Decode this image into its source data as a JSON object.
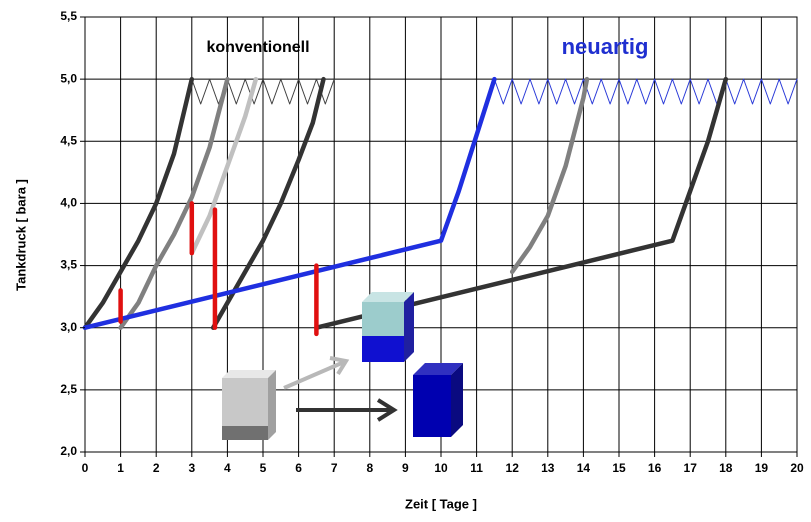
{
  "chart_data": {
    "type": "line",
    "xlabel": "Zeit  [ Tage ]",
    "ylabel": "Tankdruck  [ bara ]",
    "annotations": [
      {
        "text": "konventionell",
        "color": "#000000"
      },
      {
        "text": "neuartig",
        "color": "#1f2fd0"
      }
    ],
    "xlim": [
      0,
      20
    ],
    "xticks": [
      0,
      1,
      2,
      3,
      4,
      5,
      6,
      7,
      8,
      9,
      10,
      11,
      12,
      13,
      14,
      15,
      16,
      17,
      18,
      19,
      20
    ],
    "ylim": [
      2.0,
      5.5
    ],
    "yticks": [
      {
        "value": 2.0,
        "label": "2,0"
      },
      {
        "value": 2.5,
        "label": "2,5"
      },
      {
        "value": 3.0,
        "label": "3,0"
      },
      {
        "value": 3.5,
        "label": "3,5"
      },
      {
        "value": 4.0,
        "label": "4,0"
      },
      {
        "value": 4.5,
        "label": "4,5"
      },
      {
        "value": 5.0,
        "label": "5,0"
      },
      {
        "value": 5.5,
        "label": "5,5"
      }
    ],
    "grid": true,
    "series": [
      {
        "color": "#404040",
        "x": [
          3,
          3.25,
          3.5,
          3.75,
          4,
          4.25,
          4.5,
          4.75,
          5,
          5.25,
          5.5,
          5.75,
          6,
          6.25,
          6.5,
          6.75,
          7
        ],
        "values": [
          5.0,
          4.8,
          5.0,
          4.8,
          5.0,
          4.8,
          5.0,
          4.8,
          5.0,
          4.8,
          5.0,
          4.8,
          5.0,
          4.8,
          5.0,
          4.8,
          5.0
        ]
      },
      {
        "color": "#2a3ad8",
        "x": [
          11.5,
          11.75,
          12,
          12.25,
          12.5,
          12.75,
          13,
          13.25,
          13.5,
          13.75,
          14,
          14.25,
          14.5,
          14.75,
          15,
          15.25,
          15.5,
          15.75,
          16,
          16.25,
          16.5,
          16.75,
          17,
          17.25,
          17.5,
          17.75,
          18,
          18.25,
          18.5,
          18.75,
          19,
          19.25,
          19.5,
          19.75,
          20
        ],
        "values": [
          5.0,
          4.8,
          5.0,
          4.8,
          5.0,
          4.8,
          5.0,
          4.8,
          5.0,
          4.8,
          5.0,
          4.8,
          5.0,
          4.8,
          5.0,
          4.8,
          5.0,
          4.8,
          5.0,
          4.8,
          5.0,
          4.8,
          5.0,
          4.8,
          5.0,
          4.8,
          5.0,
          4.8,
          5.0,
          4.8,
          5.0,
          4.8,
          5.0,
          4.8,
          5.0
        ]
      },
      {
        "color": "#333333",
        "x": [
          0,
          0.5,
          1,
          1.5,
          2,
          2.5,
          3
        ],
        "values": [
          3.0,
          3.2,
          3.45,
          3.7,
          4.0,
          4.4,
          5.0
        ]
      },
      {
        "color": "#808080",
        "x": [
          1,
          1.5,
          2,
          2.5,
          3,
          3.5,
          4
        ],
        "values": [
          3.0,
          3.2,
          3.5,
          3.75,
          4.05,
          4.45,
          5.0
        ]
      },
      {
        "color": "#c0c0c0",
        "x": [
          3,
          3.5,
          4,
          4.5,
          4.8
        ],
        "values": [
          3.6,
          3.9,
          4.3,
          4.7,
          5.0
        ]
      },
      {
        "color": "#333333",
        "x": [
          3.6,
          4,
          4.5,
          5,
          5.5,
          6,
          6.4,
          6.7
        ],
        "values": [
          3.0,
          3.2,
          3.45,
          3.7,
          4.0,
          4.35,
          4.65,
          5.0
        ]
      },
      {
        "color": "#1f2fe0",
        "x": [
          0,
          10,
          10.5,
          11,
          11.5
        ],
        "values": [
          3.0,
          3.7,
          4.1,
          4.55,
          5.0
        ]
      },
      {
        "color": "#333333",
        "x": [
          6.5,
          16.5,
          17,
          17.5,
          18
        ],
        "values": [
          3.0,
          3.7,
          4.1,
          4.5,
          5.0
        ]
      },
      {
        "color": "#808080",
        "x": [
          12,
          12.5,
          13,
          13.5,
          14,
          14.1
        ],
        "values": [
          3.45,
          3.65,
          3.9,
          4.3,
          4.85,
          5.0
        ]
      },
      {
        "color": "#e01010",
        "x": [
          1,
          1
        ],
        "values": [
          3.3,
          3.05
        ]
      },
      {
        "color": "#e01010",
        "x": [
          3,
          3
        ],
        "values": [
          4.0,
          3.6
        ]
      },
      {
        "color": "#e01010",
        "x": [
          3.65,
          3.65
        ],
        "values": [
          3.95,
          3.0
        ]
      },
      {
        "color": "#e01010",
        "x": [
          6.5,
          6.5
        ],
        "values": [
          3.5,
          2.95
        ]
      }
    ]
  }
}
